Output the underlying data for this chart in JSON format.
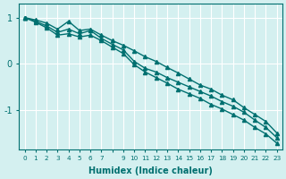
{
  "xlabel": "Humidex (Indice chaleur)",
  "ylabel": "",
  "bg_color": "#d4f0f0",
  "grid_color": "#ffffff",
  "line_color": "#007070",
  "xticks": [
    0,
    1,
    2,
    3,
    4,
    5,
    6,
    7,
    8,
    9,
    10,
    11,
    12,
    13,
    14,
    15,
    16,
    17,
    18,
    19,
    20,
    21,
    22,
    23
  ],
  "xtick_labels": [
    "0",
    "1",
    "2",
    "3",
    "4",
    "5",
    "6",
    "7",
    "",
    "9",
    "10",
    "11",
    "12",
    "13",
    "14",
    "15",
    "16",
    "17",
    "18",
    "19",
    "20",
    "21",
    "22",
    "23"
  ],
  "ylim": [
    -1.85,
    1.3
  ],
  "xlim": [
    -0.5,
    23.5
  ],
  "series1_x": [
    0,
    1,
    2,
    3,
    4,
    5,
    6,
    7,
    8,
    9,
    10,
    11,
    12,
    13,
    14,
    15,
    16,
    17,
    18,
    19,
    20,
    21,
    22,
    23
  ],
  "series1_y": [
    1.0,
    0.95,
    0.88,
    0.75,
    0.92,
    0.72,
    0.75,
    0.62,
    0.5,
    0.4,
    0.28,
    0.15,
    0.05,
    -0.08,
    -0.2,
    -0.33,
    -0.46,
    -0.55,
    -0.68,
    -0.78,
    -0.95,
    -1.1,
    -1.25,
    -1.5
  ],
  "series2_x": [
    0,
    1,
    2,
    3,
    4,
    5,
    6,
    7,
    8,
    9,
    10,
    11,
    12,
    13,
    14,
    15,
    16,
    17,
    18,
    19,
    20,
    21,
    22,
    23
  ],
  "series2_y": [
    1.0,
    0.92,
    0.82,
    0.68,
    0.75,
    0.65,
    0.72,
    0.55,
    0.42,
    0.3,
    0.05,
    -0.1,
    -0.18,
    -0.3,
    -0.4,
    -0.5,
    -0.6,
    -0.7,
    -0.82,
    -0.92,
    -1.05,
    -1.22,
    -1.38,
    -1.6
  ],
  "series3_x": [
    0,
    1,
    2,
    3,
    4,
    5,
    6,
    7,
    8,
    9,
    10,
    11,
    12,
    13,
    14,
    15,
    16,
    17,
    18,
    19,
    20,
    21,
    22,
    23
  ],
  "series3_y": [
    1.0,
    0.9,
    0.78,
    0.62,
    0.65,
    0.58,
    0.62,
    0.5,
    0.36,
    0.22,
    -0.02,
    -0.18,
    -0.3,
    -0.42,
    -0.55,
    -0.65,
    -0.75,
    -0.88,
    -0.98,
    -1.1,
    -1.22,
    -1.38,
    -1.52,
    -1.72
  ],
  "yticks": [
    -1,
    0,
    1
  ],
  "ytick_labels": [
    "-1",
    "0",
    "1"
  ],
  "marker": "^",
  "markersize": 3,
  "linewidth": 1.0
}
